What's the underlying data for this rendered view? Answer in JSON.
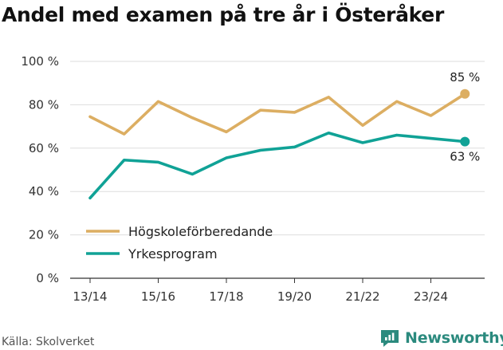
{
  "chart_data": {
    "type": "line",
    "title": "Andel med examen på tre år i Österåker",
    "categories": [
      "13/14",
      "14/15",
      "15/16",
      "16/17",
      "17/18",
      "18/19",
      "19/20",
      "20/21",
      "21/22",
      "22/23",
      "23/24",
      "24/25"
    ],
    "tick_labels": [
      "13/14",
      "15/16",
      "17/18",
      "19/20",
      "21/22",
      "23/24"
    ],
    "y_ticks": [
      0,
      20,
      40,
      60,
      80,
      100
    ],
    "y_tick_labels": [
      "0 %",
      "20 %",
      "40 %",
      "60 %",
      "80 %",
      "100 %"
    ],
    "ylim": [
      0,
      100
    ],
    "xlabel": "",
    "ylabel": "",
    "grid": true,
    "legend_position": "bottom-left",
    "series": [
      {
        "name": "Högskoleförberedande",
        "color": "#dcae62",
        "values": [
          74.5,
          66.5,
          81.5,
          74,
          67.5,
          77.5,
          76.5,
          83.5,
          70.5,
          81.5,
          75,
          85
        ],
        "end_label": "85 %"
      },
      {
        "name": "Yrkesprogram",
        "color": "#10a296",
        "values": [
          37,
          54.5,
          53.5,
          48,
          55.5,
          59,
          60.5,
          67,
          62.5,
          66,
          64.5,
          63
        ],
        "end_label": "63 %"
      }
    ]
  },
  "source": "Källa: Skolverket",
  "brand": "Newsworthy",
  "colors": {
    "brand": "#2b8a7e",
    "grid": "#dddddd",
    "axis": "#333333"
  }
}
